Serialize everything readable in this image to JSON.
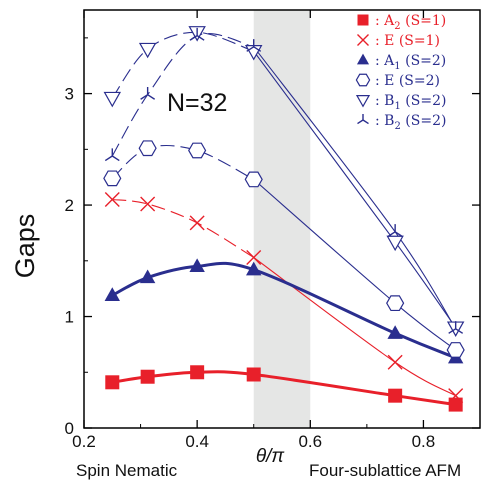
{
  "chart_data": {
    "type": "line",
    "xlabel": "θ/π",
    "ylabel": "Gaps",
    "xlim": [
      0.2,
      0.9
    ],
    "ylim": [
      0,
      3.75
    ],
    "xticks": [
      0.2,
      0.4,
      0.6,
      0.8
    ],
    "xtick_labels": [
      "0.2",
      "0.4",
      "0.6",
      "0.8"
    ],
    "yticks": [
      0,
      1,
      2,
      3
    ],
    "ytick_labels": [
      "0",
      "1",
      "2",
      "3"
    ],
    "grid": false,
    "legend_position": "top-right",
    "annotation": "N=32",
    "bottom_left_label": "Spin Nematic",
    "bottom_right_label": "Four-sublattice AFM",
    "shaded_region": [
      0.5,
      0.6
    ],
    "series": [
      {
        "name": "A₂ (S=1)",
        "sym": "A",
        "sub": "2",
        "spin": "(S=1)",
        "marker": "square-filled",
        "color": "#e8202a",
        "line": "thick-solid",
        "x": [
          0.25,
          0.3125,
          0.4,
          0.5,
          0.75,
          0.857
        ],
        "y": [
          0.41,
          0.46,
          0.5,
          0.48,
          0.29,
          0.21
        ]
      },
      {
        "name": "E (S=1)",
        "sym": "E",
        "sub": "",
        "spin": "(S=1)",
        "marker": "x",
        "color": "#e8202a",
        "line": "thin-dash-then-solid",
        "x": [
          0.25,
          0.3125,
          0.4,
          0.5,
          0.75,
          0.857
        ],
        "y": [
          2.05,
          2.01,
          1.84,
          1.53,
          0.59,
          0.29
        ]
      },
      {
        "name": "A₁ (S=2)",
        "sym": "A",
        "sub": "1",
        "spin": "(S=2)",
        "marker": "triangle-up-filled",
        "color": "#2a2e8e",
        "line": "thick-solid",
        "x": [
          0.25,
          0.3125,
          0.4,
          0.5,
          0.75,
          0.857
        ],
        "y": [
          1.19,
          1.35,
          1.45,
          1.42,
          0.85,
          0.63
        ]
      },
      {
        "name": "E (S=2)",
        "sym": "E",
        "sub": "",
        "spin": "(S=2)",
        "marker": "hexagon-open",
        "color": "#2a2e8e",
        "line": "thin-dash-then-solid",
        "x": [
          0.25,
          0.3125,
          0.4,
          0.5,
          0.75,
          0.857
        ],
        "y": [
          2.24,
          2.51,
          2.49,
          2.23,
          1.12,
          0.7
        ]
      },
      {
        "name": "B₁ (S=2)",
        "sym": "B",
        "sub": "1",
        "spin": "(S=2)",
        "marker": "triangle-down-open",
        "color": "#2a2e8e",
        "line": "thin-dash-then-solid",
        "x": [
          0.25,
          0.3125,
          0.4,
          0.5,
          0.75,
          0.857
        ],
        "y": [
          2.96,
          3.4,
          3.55,
          3.38,
          1.67,
          0.9
        ]
      },
      {
        "name": "B₂ (S=2)",
        "sym": "B",
        "sub": "2",
        "spin": "(S=2)",
        "marker": "tri-star",
        "color": "#2a2e8e",
        "line": "thin-dash-then-solid",
        "x": [
          0.25,
          0.3125,
          0.4,
          0.5,
          0.75,
          0.857
        ],
        "y": [
          2.44,
          2.99,
          3.52,
          3.42,
          1.76,
          0.89
        ]
      }
    ]
  }
}
